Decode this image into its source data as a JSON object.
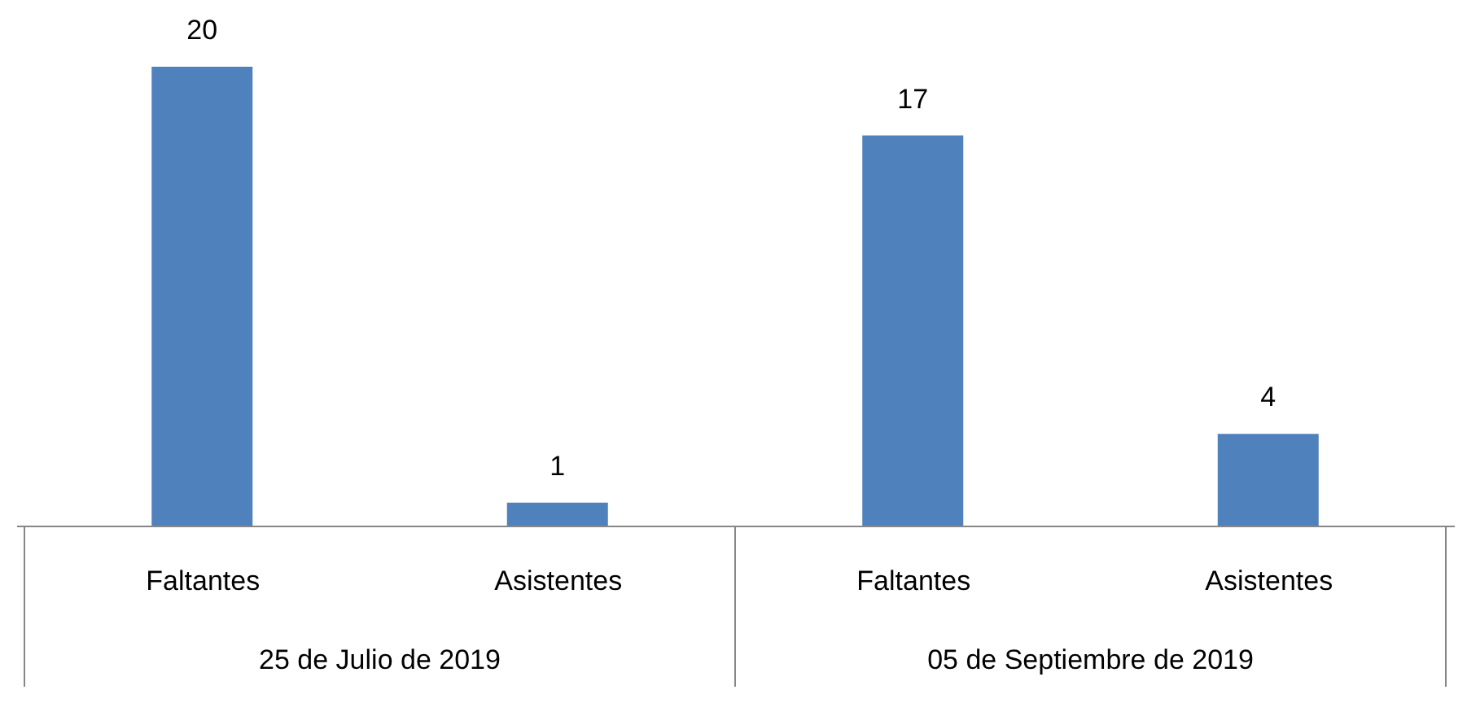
{
  "chart_data": {
    "type": "bar",
    "categories": [
      "Faltantes",
      "Asistentes",
      "Faltantes",
      "Asistentes"
    ],
    "values": [
      20,
      1,
      17,
      4
    ],
    "color": "#4f81bd",
    "data_labels": true,
    "grid": false,
    "annotations": [
      "25 de Julio de 2019",
      "05 de Septiembre de 2019"
    ]
  }
}
